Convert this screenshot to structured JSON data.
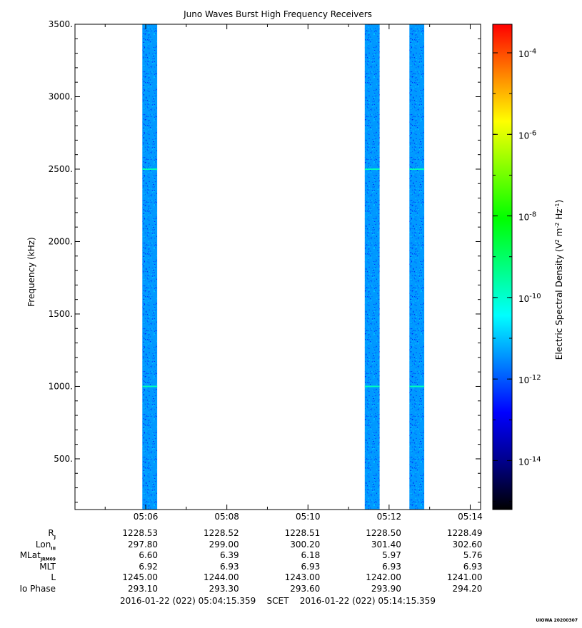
{
  "chart_data": {
    "type": "heatmap",
    "title": "Juno Waves Burst High Frequency Receivers",
    "ylabel": "Frequency (kHz)",
    "x_ticks": [
      "05:06",
      "05:08",
      "05:10",
      "05:12",
      "05:14"
    ],
    "y_ticks": [
      "500.",
      "1000.",
      "1500.",
      "2000.",
      "2500.",
      "3000.",
      "3500."
    ],
    "x_range": [
      "05:04:15.359",
      "05:14:15.359"
    ],
    "ylim": [
      150,
      3500
    ],
    "data_intervals": [
      {
        "start": "05:05:55",
        "end": "05:06:17"
      },
      {
        "start": "05:11:24",
        "end": "05:11:46"
      },
      {
        "start": "05:12:30",
        "end": "05:12:52"
      }
    ],
    "typical_level_exponent": -12,
    "colorbar": {
      "label": "Electric Spectral Density (V2 m-2 Hz-1)",
      "label_base": "Electric Spectral Density (V",
      "label_m": " m",
      "label_hz": " Hz",
      "label_end": ")",
      "sup2": "2",
      "supm2": "-2",
      "supm1": "-1",
      "scale": "log",
      "range_exponents": [
        -15.2,
        -3.3
      ],
      "tick_base": "10",
      "tick_exponents": [
        "-14",
        "-12",
        "-10",
        "-8",
        "-6",
        "-4"
      ],
      "colors": [
        "#000000",
        "#00008b",
        "#0000ff",
        "#0080ff",
        "#00ffff",
        "#00ff80",
        "#00ff00",
        "#80ff00",
        "#ffff00",
        "#ff8000",
        "#ff0000"
      ]
    }
  },
  "ephemeris": {
    "rows": [
      {
        "label": "R",
        "sub": "J",
        "values": [
          "1228.53",
          "1228.52",
          "1228.51",
          "1228.50",
          "1228.49"
        ]
      },
      {
        "label": "Lon",
        "sub": "III",
        "values": [
          "297.80",
          "299.00",
          "300.20",
          "301.40",
          "302.60"
        ]
      },
      {
        "label": "MLat",
        "sub": "JRM09",
        "values": [
          "6.60",
          "6.39",
          "6.18",
          "5.97",
          "5.76"
        ]
      },
      {
        "label": "MLT",
        "sub": "",
        "values": [
          "6.92",
          "6.93",
          "6.93",
          "6.93",
          "6.93"
        ]
      },
      {
        "label": "L",
        "sub": "",
        "values": [
          "1245.00",
          "1244.00",
          "1243.00",
          "1242.00",
          "1241.00"
        ]
      },
      {
        "label": "Io Phase",
        "sub": "",
        "values": [
          "293.10",
          "293.30",
          "293.60",
          "293.90",
          "294.20"
        ]
      }
    ]
  },
  "footer": {
    "scet": "2016-01-22 (022) 05:04:15.359    SCET    2016-01-22 (022) 05:14:15.359",
    "stamp": "UIOWA 20200307"
  }
}
